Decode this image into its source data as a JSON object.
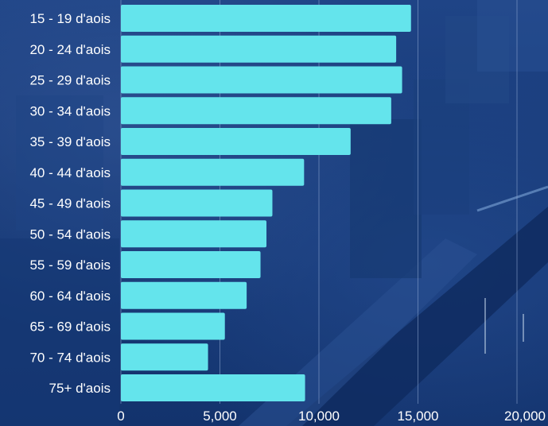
{
  "chart_data": {
    "type": "bar",
    "orientation": "horizontal",
    "categories": [
      "15 - 19 d'aois",
      "20 - 24 d'aois",
      "25 - 29 d'aois",
      "30 - 34 d'aois",
      "35 - 39 d'aois",
      "40 - 44 d'aois",
      "45 - 49 d'aois",
      "50 - 54 d'aois",
      "55 - 59 d'aois",
      "60 - 64 d'aois",
      "65 - 69 d'aois",
      "70 - 74 d'aois",
      "75+ d'aois"
    ],
    "values": [
      14650,
      13900,
      14200,
      13650,
      11600,
      9250,
      7650,
      7350,
      7050,
      6350,
      5250,
      4400,
      9300
    ],
    "ticks": [
      "0",
      "5,000",
      "10,000",
      "15,000",
      "20,000"
    ],
    "tick_values": [
      0,
      5000,
      10000,
      15000,
      20000
    ],
    "xlim": [
      0,
      20000
    ],
    "grid": true,
    "colors": {
      "bar": "#64e4ec",
      "text": "#ffffff",
      "grid": "#8fa8d2"
    }
  }
}
